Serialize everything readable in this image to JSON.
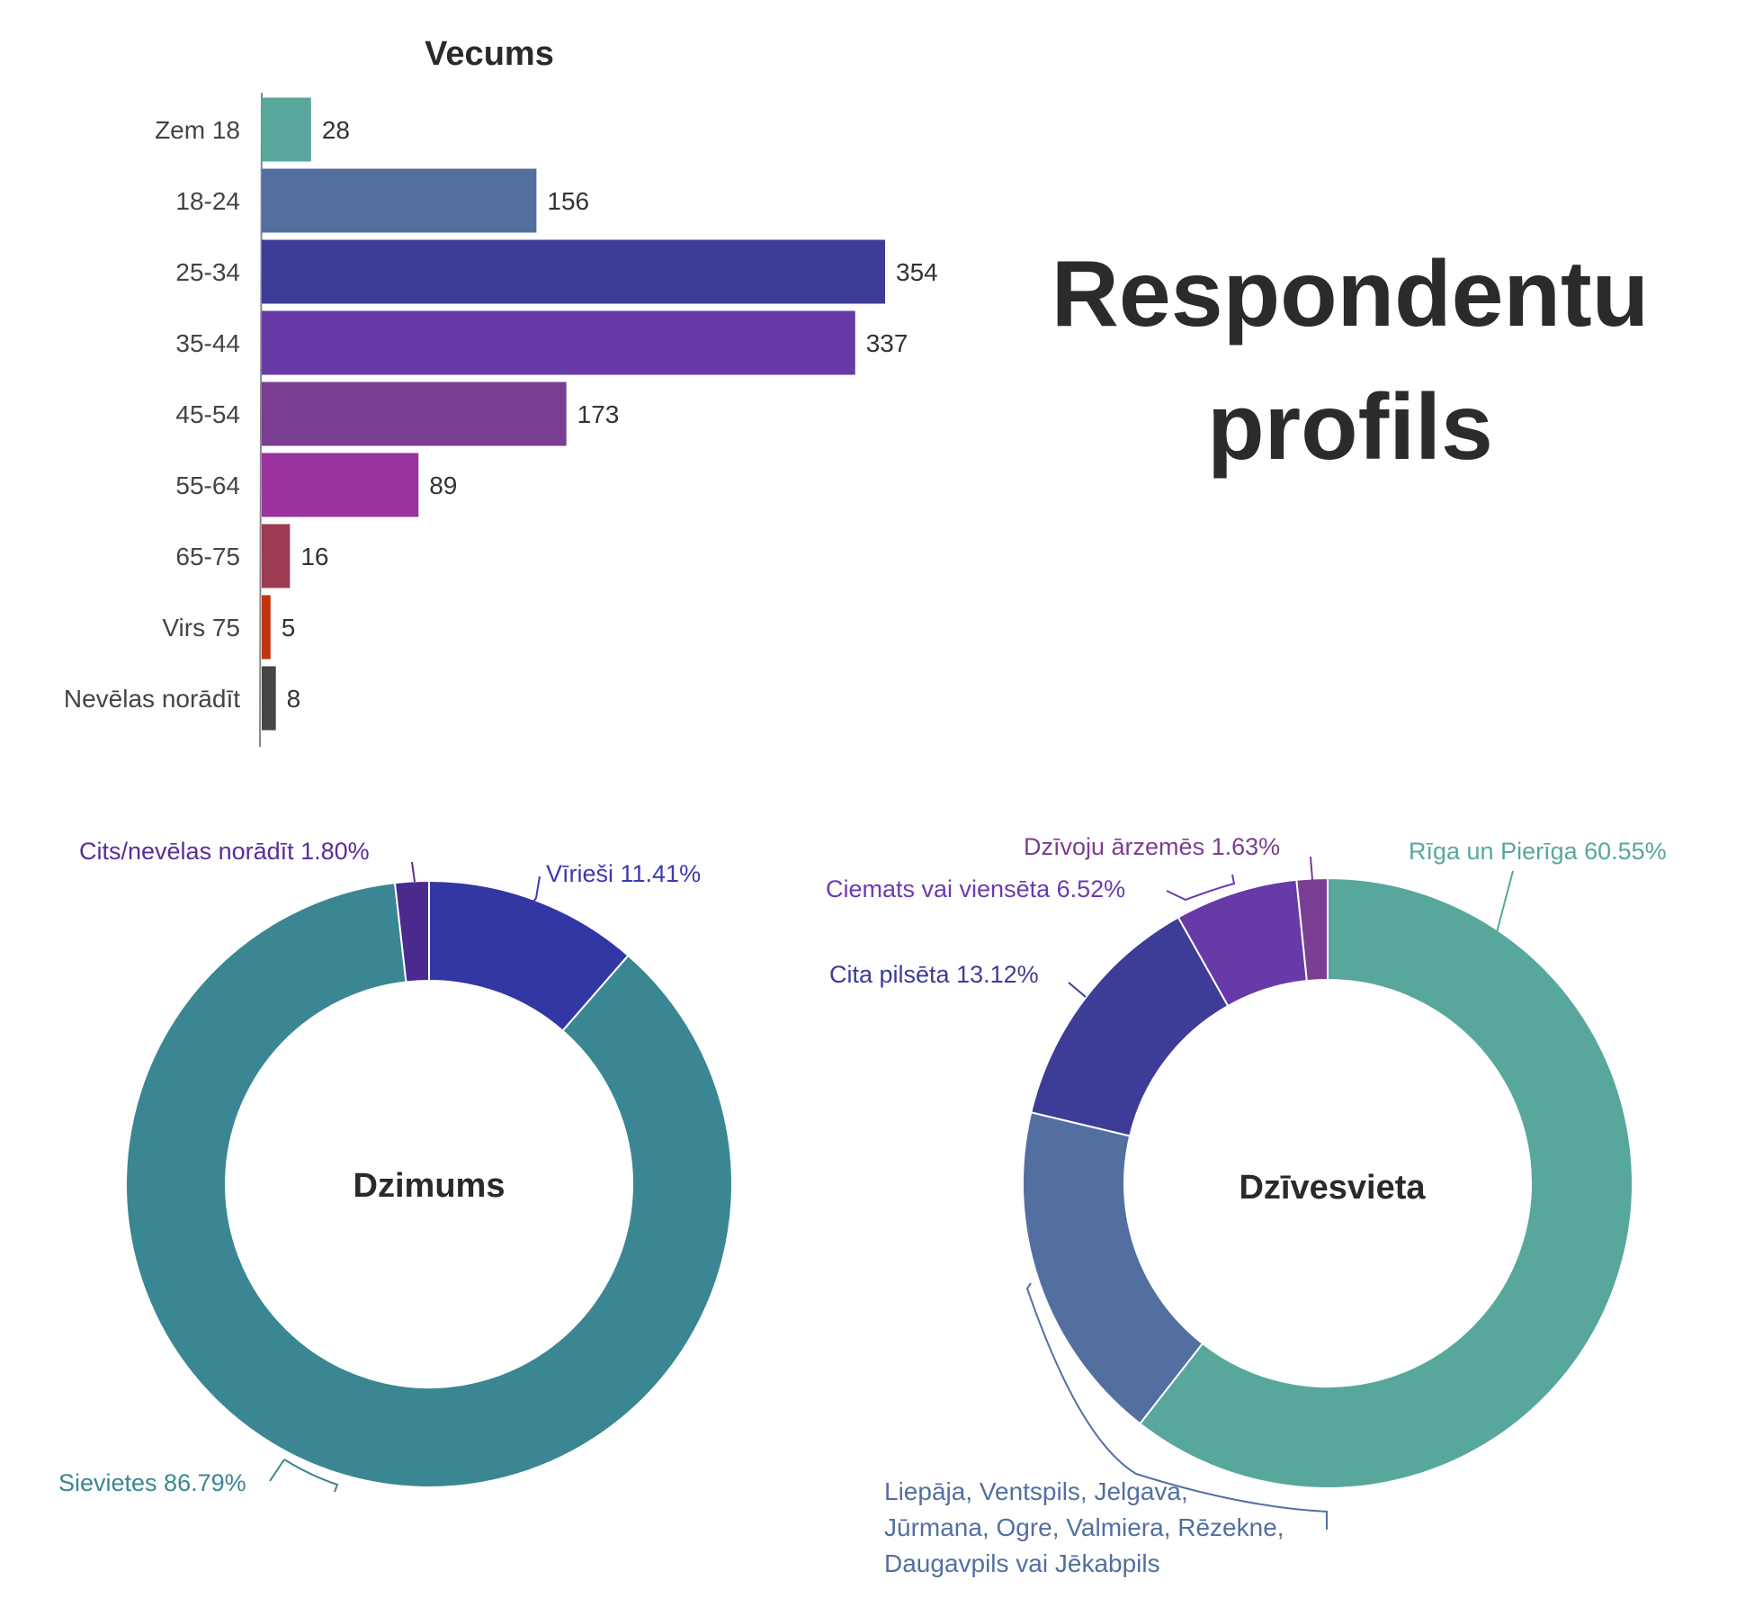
{
  "headline": {
    "line1": "Respondentu",
    "line2": "profils"
  },
  "chart_data": [
    {
      "type": "bar",
      "orientation": "horizontal",
      "title": "Vecums",
      "categories": [
        "Zem 18",
        "18-24",
        "25-34",
        "35-44",
        "45-54",
        "55-64",
        "65-75",
        "Virs 75",
        "Nevēlas norādīt"
      ],
      "values": [
        28,
        156,
        354,
        337,
        173,
        89,
        16,
        5,
        8
      ],
      "colors": [
        "#5aa79d",
        "#526fa0",
        "#3d3c96",
        "#673aa8",
        "#7a3e92",
        "#9a329f",
        "#9d3b52",
        "#c0340e",
        "#454545"
      ],
      "xlim": [
        0,
        354
      ],
      "grid": false
    },
    {
      "type": "pie",
      "donut": true,
      "title": "Dzimums",
      "slices": [
        {
          "label": "Vīrieši 11.41%",
          "value": 11.41,
          "color": "#3337a3",
          "label_color": "#3a3ab0"
        },
        {
          "label": "Sievietes 86.79%",
          "value": 86.79,
          "color": "#3b8693",
          "label_color": "#3b8693"
        },
        {
          "label": "Cits/nevēlas norādīt 1.80%",
          "value": 1.8,
          "color": "#4b2a8e",
          "label_color": "#5a2d9a"
        }
      ]
    },
    {
      "type": "pie",
      "donut": true,
      "title": "Dzīvesvieta",
      "slices": [
        {
          "label": "Rīga un Pierīga 60.55%",
          "value": 60.55,
          "color": "#58a79c",
          "label_color": "#58a79c"
        },
        {
          "label": "Liepāja, Ventspils, Jelgava, Jūrmana, Ogre, Valmiera, Rēzekne, Daugavpils vai Jēkabpils",
          "label_lines": [
            "Liepāja, Ventspils, Jelgava,",
            "Jūrmana, Ogre, Valmiera, Rēzekne,",
            "Daugavpils vai Jēkabpils"
          ],
          "value": 18.18,
          "color": "#526fa0",
          "label_color": "#526fa0"
        },
        {
          "label": "Cita pilsēta 13.12%",
          "value": 13.12,
          "color": "#3d3c96",
          "label_color": "#3d3c96"
        },
        {
          "label": "Ciemats vai viensēta 6.52%",
          "value": 6.52,
          "color": "#673aa8",
          "label_color": "#6b3bb0"
        },
        {
          "label": "Dzīvoju ārzemēs 1.63%",
          "value": 1.63,
          "color": "#7a3e92",
          "label_color": "#7a3e92"
        }
      ]
    }
  ]
}
